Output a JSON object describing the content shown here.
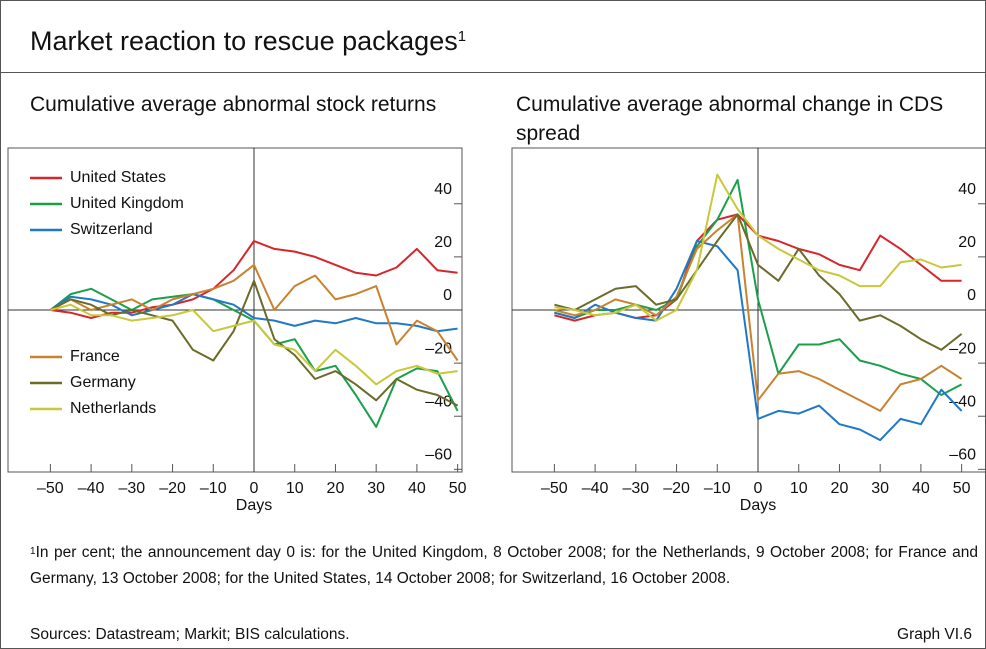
{
  "title": "Market reaction to rescue packages",
  "title_note": "1",
  "chart_data": [
    {
      "type": "line",
      "title": "Cumulative average abnormal stock returns",
      "x_label": "Days",
      "legend": true,
      "x": [
        -50,
        -45,
        -40,
        -35,
        -30,
        -25,
        -20,
        -15,
        -10,
        -5,
        0,
        5,
        10,
        15,
        20,
        25,
        30,
        35,
        40,
        45,
        50
      ],
      "xlim": [
        -55,
        55
      ],
      "xticks": [
        {
          "value": -50,
          "label": "–50"
        },
        {
          "value": -40,
          "label": "–40"
        },
        {
          "value": -30,
          "label": "–30"
        },
        {
          "value": -20,
          "label": "–20"
        },
        {
          "value": -10,
          "label": "–10"
        },
        0,
        10,
        20,
        30,
        40,
        50
      ],
      "ylim": [
        -61,
        61
      ],
      "yticks": [
        40,
        20,
        0,
        {
          "value": -20,
          "label": "–20"
        },
        {
          "value": -40,
          "label": "–40"
        },
        {
          "value": -60,
          "label": "–60"
        }
      ],
      "series": [
        {
          "name": "United States",
          "color": "#d7262b",
          "values": [
            0,
            -1,
            -3,
            -1,
            -1,
            1,
            2,
            4,
            8,
            15,
            26,
            23,
            22,
            20,
            17,
            14,
            13,
            16,
            23,
            15,
            14
          ]
        },
        {
          "name": "United Kingdom",
          "color": "#1aa04a",
          "values": [
            0,
            6,
            8,
            4,
            0,
            4,
            5,
            6,
            4,
            0,
            -4,
            -13,
            -11,
            -23,
            -21,
            -32,
            -44,
            -26,
            -22,
            -23,
            -38
          ]
        },
        {
          "name": "Switzerland",
          "color": "#1f78c8",
          "values": [
            0,
            5,
            4,
            2,
            -2,
            0,
            2,
            6,
            4,
            2,
            -3,
            -4,
            -6,
            -4,
            -5,
            -3,
            -5,
            -5,
            -6,
            -8,
            -7
          ]
        },
        {
          "name": "France",
          "color": "#c9822e",
          "values": [
            0,
            4,
            0,
            2,
            4,
            0,
            4,
            6,
            8,
            11,
            17,
            0,
            9,
            13,
            4,
            6,
            9,
            -13,
            -4,
            -8,
            -19
          ]
        },
        {
          "name": "Germany",
          "color": "#6b6b2a",
          "values": [
            0,
            4,
            2,
            -2,
            0,
            -2,
            -4,
            -15,
            -19,
            -8,
            11,
            -11,
            -17,
            -26,
            -23,
            -28,
            -34,
            -26,
            -30,
            -32,
            -36
          ]
        },
        {
          "name": "Netherlands",
          "color": "#c8c83a",
          "values": [
            0,
            2,
            -2,
            -2,
            -4,
            -3,
            -2,
            0,
            -8,
            -6,
            -4,
            -13,
            -15,
            -23,
            -15,
            -21,
            -28,
            -23,
            -21,
            -24,
            -23
          ]
        }
      ]
    },
    {
      "type": "line",
      "title": "Cumulative average abnormal change in CDS spread",
      "x_label": "Days",
      "legend": false,
      "x": [
        -50,
        -45,
        -40,
        -35,
        -30,
        -25,
        -20,
        -15,
        -10,
        -5,
        0,
        5,
        10,
        15,
        20,
        25,
        30,
        35,
        40,
        45,
        50
      ],
      "xlim": [
        -55,
        55
      ],
      "xticks": [
        {
          "value": -50,
          "label": "–50"
        },
        {
          "value": -40,
          "label": "–40"
        },
        {
          "value": -30,
          "label": "–30"
        },
        {
          "value": -20,
          "label": "–20"
        },
        {
          "value": -10,
          "label": "–10"
        },
        0,
        10,
        20,
        30,
        40,
        50
      ],
      "ylim": [
        -61,
        61
      ],
      "yticks": [
        40,
        20,
        0,
        {
          "value": -20,
          "label": "–20"
        },
        {
          "value": -40,
          "label": "–40"
        },
        {
          "value": -60,
          "label": "–60"
        }
      ],
      "series": [
        {
          "name": "United States",
          "color": "#d7262b",
          "values": [
            -2,
            -4,
            -2,
            -1,
            -3,
            -2,
            4,
            26,
            34,
            36,
            28,
            26,
            23,
            21,
            17,
            15,
            28,
            23,
            17,
            11,
            11
          ]
        },
        {
          "name": "United Kingdom",
          "color": "#1aa04a",
          "values": [
            -1,
            -3,
            0,
            0,
            2,
            0,
            4,
            24,
            34,
            49,
            4,
            -24,
            -13,
            -13,
            -11,
            -19,
            -21,
            -24,
            -26,
            -32,
            -28
          ]
        },
        {
          "name": "Switzerland",
          "color": "#1f78c8",
          "values": [
            -1,
            -3,
            2,
            -1,
            -3,
            -4,
            8,
            26,
            24,
            15,
            -41,
            -38,
            -39,
            -36,
            -43,
            -45,
            -49,
            -41,
            -43,
            -30,
            -38
          ]
        },
        {
          "name": "France",
          "color": "#c9822e",
          "values": [
            0,
            -2,
            0,
            4,
            2,
            -2,
            5,
            23,
            30,
            36,
            -34,
            -24,
            -23,
            -26,
            -30,
            -34,
            -38,
            -28,
            -26,
            -21,
            -26
          ]
        },
        {
          "name": "Germany",
          "color": "#6b6b2a",
          "values": [
            2,
            0,
            4,
            8,
            9,
            2,
            4,
            15,
            26,
            36,
            17,
            11,
            23,
            13,
            6,
            -4,
            -2,
            -6,
            -11,
            -15,
            -9
          ]
        },
        {
          "name": "Netherlands",
          "color": "#c8c83a",
          "values": [
            1,
            0,
            -2,
            -1,
            2,
            -4,
            0,
            15,
            51,
            38,
            28,
            23,
            19,
            15,
            13,
            9,
            9,
            18,
            19,
            16,
            17
          ]
        }
      ]
    }
  ],
  "footnote": {
    "marker": "1",
    "text": "In per cent; the announcement day 0 is: for the United Kingdom, 8 October 2008; for the Netherlands, 9 October 2008; for France and Germany, 13 October 2008; for the United States, 14 October 2008; for Switzerland, 16 October 2008."
  },
  "sources": "Sources: Datastream; Markit; BIS calculations.",
  "graph_id": "Graph VI.6"
}
